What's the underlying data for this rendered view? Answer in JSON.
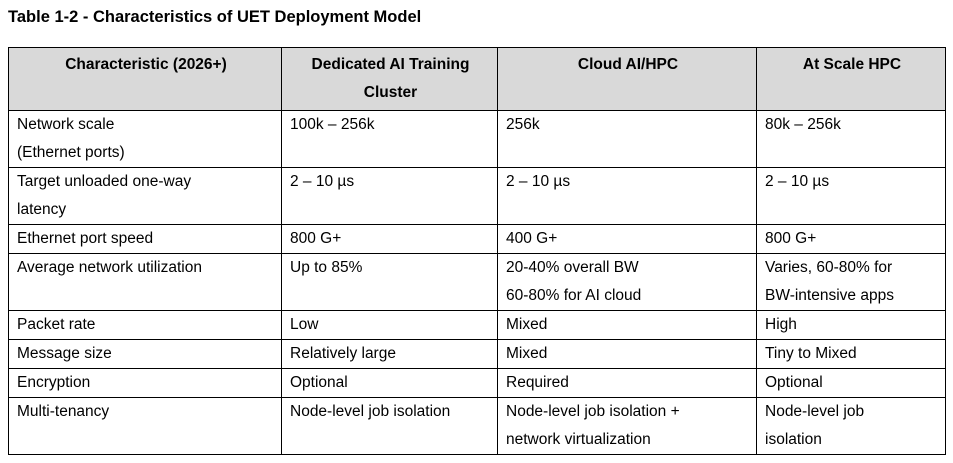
{
  "caption": "Table 1-2 - Characteristics of UET Deployment Model",
  "table": {
    "headers": [
      "Characteristic (2026+)",
      "Dedicated AI Training Cluster",
      "Cloud AI/HPC",
      "At Scale HPC"
    ],
    "rows": [
      [
        "Network scale\n(Ethernet ports)",
        "100k – 256k",
        "256k",
        "80k – 256k"
      ],
      [
        "Target unloaded one-way\nlatency",
        "2 – 10 µs",
        "2 – 10 µs",
        "2 – 10 µs"
      ],
      [
        "Ethernet port speed",
        "800 G+",
        "400 G+",
        "800 G+"
      ],
      [
        "Average network utilization",
        "Up to 85%",
        "20-40% overall BW\n60-80% for AI cloud",
        "Varies, 60-80% for\nBW-intensive apps"
      ],
      [
        "Packet rate",
        "Low",
        "Mixed",
        "High"
      ],
      [
        "Message size",
        "Relatively large",
        "Mixed",
        "Tiny to Mixed"
      ],
      [
        "Encryption",
        "Optional",
        "Required",
        "Optional"
      ],
      [
        "Multi-tenancy",
        "Node-level job isolation",
        "Node-level job isolation +\nnetwork virtualization",
        "Node-level job\nisolation"
      ]
    ]
  }
}
